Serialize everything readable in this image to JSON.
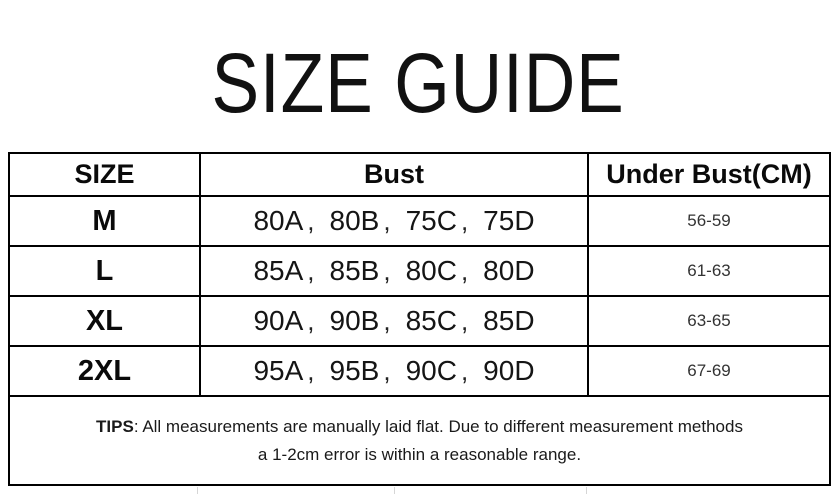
{
  "page": {
    "title": "SIZE GUIDE"
  },
  "size_table": {
    "headers": [
      "SIZE",
      "Bust",
      "Under Bust(CM)"
    ],
    "bust_separator": "、",
    "bust_separator_render": ",",
    "rows": [
      {
        "size": "M",
        "bust": [
          "80A",
          "80B",
          "75C",
          "75D"
        ],
        "under_bust_cm": "56-59"
      },
      {
        "size": "L",
        "bust": [
          "85A",
          "85B",
          "80C",
          "80D"
        ],
        "under_bust_cm": "61-63"
      },
      {
        "size": "XL",
        "bust": [
          "90A",
          "90B",
          "85C",
          "85D"
        ],
        "under_bust_cm": "63-65"
      },
      {
        "size": "2XL",
        "bust": [
          "95A",
          "95B",
          "90C",
          "90D"
        ],
        "under_bust_cm": "67-69"
      }
    ]
  },
  "tips": {
    "label": "TIPS",
    "text_line1": ": All measurements are manually laid flat. Due to different measurement methods",
    "text_line2": "a 1-2cm error is within a reasonable range."
  },
  "colors": {
    "background": "#ffffff",
    "text": "#111111",
    "muted_text": "#333333",
    "table_border": "#000000",
    "spreadsheet_gridline": "#d6d6d6"
  }
}
